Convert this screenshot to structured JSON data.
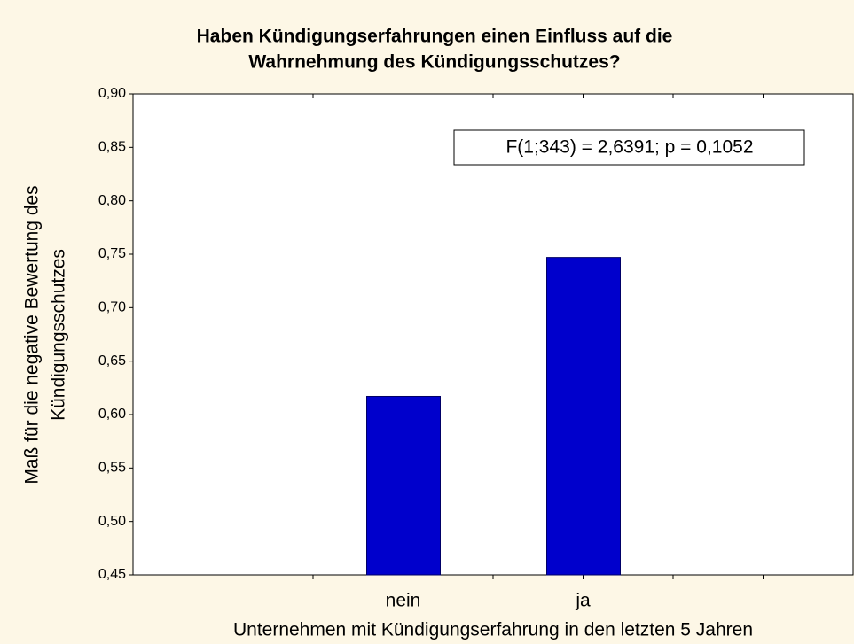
{
  "chart_data": {
    "type": "bar",
    "title": [
      "Haben Kündigungserfahrungen einen Einfluss auf die",
      "Wahrnehmung des Kündigungsschutzes?"
    ],
    "xlabel": "Unternehmen mit Kündigungserfahrung in den letzten 5 Jahren",
    "ylabel": [
      "Maß für die negative Bewertung des",
      "Kündigungsschutzes"
    ],
    "annotation": "F(1;343) = 2,6391; p = 0,1052",
    "categories": [
      "nein",
      "ja"
    ],
    "values": [
      0.617,
      0.747
    ],
    "color": "#0000cc",
    "ylim": [
      0.45,
      0.9
    ],
    "yticks": [
      {
        "value": 0.45,
        "label": "0,45"
      },
      {
        "value": 0.5,
        "label": "0,50"
      },
      {
        "value": 0.55,
        "label": "0,55"
      },
      {
        "value": 0.6,
        "label": "0,60"
      },
      {
        "value": 0.65,
        "label": "0,65"
      },
      {
        "value": 0.7,
        "label": "0,70"
      },
      {
        "value": 0.75,
        "label": "0,75"
      },
      {
        "value": 0.8,
        "label": "0,80"
      },
      {
        "value": 0.85,
        "label": "0,85"
      },
      {
        "value": 0.9,
        "label": "0,90"
      }
    ],
    "grid": false
  }
}
